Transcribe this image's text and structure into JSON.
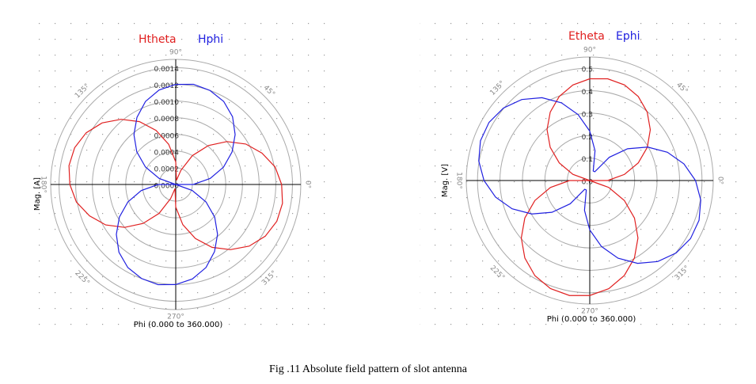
{
  "chart_data": [
    {
      "type": "polar",
      "xlabel": "Phi (0.000 to 360.000)",
      "ylabel": "Mag. [A]",
      "theta": [
        0,
        10,
        20,
        30,
        40,
        50,
        60,
        70,
        80,
        90,
        100,
        110,
        120,
        130,
        140,
        150,
        160,
        170,
        180,
        190,
        200,
        210,
        220,
        230,
        240,
        250,
        260,
        270,
        280,
        290,
        300,
        310,
        320,
        330,
        340,
        350
      ],
      "thetaticks": [
        {
          "value": 0,
          "label": "0°"
        },
        {
          "value": 45,
          "label": "45°"
        },
        {
          "value": 90,
          "label": "90°"
        },
        {
          "value": 135,
          "label": "135°"
        },
        {
          "value": 180,
          "label": "180°"
        },
        {
          "value": 225,
          "label": "225°"
        },
        {
          "value": 270,
          "label": "270°"
        },
        {
          "value": 315,
          "label": "315°"
        }
      ],
      "rlim": [
        0,
        0.0015
      ],
      "rticks": [
        {
          "value": 0,
          "label": "0.0000"
        },
        0.0002,
        0.0004,
        0.0006,
        0.0008,
        {
          "value": 0.001,
          "label": "0.0010"
        },
        0.0012,
        0.0014
      ],
      "series": [
        {
          "name": "Htheta",
          "color": "#e02020",
          "values": [
            0.00127,
            0.00121,
            0.0011,
            0.00097,
            0.0008,
            0.00061,
            0.0004,
            0.00018,
            5e-05,
            0.00027,
            0.00049,
            0.00069,
            0.00087,
            0.00102,
            0.00115,
            0.00124,
            0.00129,
            0.0013,
            0.00127,
            0.00121,
            0.0011,
            0.00097,
            0.0008,
            0.00061,
            0.0004,
            0.00018,
            5e-05,
            0.00027,
            0.00049,
            0.00069,
            0.00087,
            0.00102,
            0.00115,
            0.00124,
            0.00129,
            0.0013
          ]
        },
        {
          "name": "Hphi",
          "color": "#2020e0",
          "values": [
            0.00021,
            0.00042,
            0.00061,
            0.00078,
            0.00093,
            0.00106,
            0.00115,
            0.0012,
            0.00122,
            0.0012,
            0.00115,
            0.00106,
            0.00093,
            0.00078,
            0.00061,
            0.00042,
            0.00021,
            0,
            0.00021,
            0.00042,
            0.00061,
            0.00078,
            0.00093,
            0.00106,
            0.00115,
            0.0012,
            0.00122,
            0.0012,
            0.00115,
            0.00106,
            0.00093,
            0.00078,
            0.00061,
            0.00042,
            0.00021,
            0
          ]
        }
      ]
    },
    {
      "type": "polar",
      "xlabel": "Phi (0.000 to 360.000)",
      "ylabel": "Mag. [V]",
      "theta": [
        0,
        10,
        20,
        30,
        40,
        50,
        60,
        70,
        80,
        90,
        100,
        110,
        120,
        130,
        140,
        150,
        160,
        170,
        180,
        190,
        200,
        210,
        220,
        230,
        240,
        250,
        260,
        270,
        280,
        290,
        300,
        310,
        320,
        330,
        340,
        350
      ],
      "thetaticks": [
        {
          "value": 0,
          "label": "0°"
        },
        {
          "value": 45,
          "label": "45°"
        },
        {
          "value": 90,
          "label": "90°"
        },
        {
          "value": 135,
          "label": "135°"
        },
        {
          "value": 180,
          "label": "180°"
        },
        {
          "value": 225,
          "label": "225°"
        },
        {
          "value": 270,
          "label": "270°"
        },
        {
          "value": 315,
          "label": "315°"
        }
      ],
      "rlim": [
        0,
        0.55
      ],
      "rticks": [
        {
          "value": 0,
          "label": "0.0"
        },
        0.1,
        0.2,
        0.3,
        0.4,
        0.5
      ],
      "series": [
        {
          "name": "Etheta",
          "color": "#e02020",
          "values": [
            0.08,
            0.157,
            0.23,
            0.296,
            0.352,
            0.398,
            0.432,
            0.453,
            0.46,
            0.453,
            0.432,
            0.398,
            0.352,
            0.296,
            0.23,
            0.157,
            0.08,
            0,
            0.09,
            0.178,
            0.26,
            0.334,
            0.398,
            0.45,
            0.489,
            0.512,
            0.52,
            0.512,
            0.489,
            0.45,
            0.398,
            0.334,
            0.26,
            0.178,
            0.09,
            0
          ]
        },
        {
          "name": "Ephi",
          "color": "#2020e0",
          "values": [
            0.471,
            0.426,
            0.368,
            0.298,
            0.22,
            0.135,
            0.045,
            0.045,
            0.135,
            0.22,
            0.298,
            0.368,
            0.426,
            0.471,
            0.502,
            0.518,
            0.518,
            0.502,
            0.471,
            0.426,
            0.368,
            0.298,
            0.22,
            0.135,
            0.045,
            0.045,
            0.135,
            0.22,
            0.298,
            0.368,
            0.426,
            0.471,
            0.502,
            0.518,
            0.518,
            0.502
          ]
        }
      ]
    }
  ],
  "caption": "Fig .11 Absolute field pattern of slot antenna"
}
